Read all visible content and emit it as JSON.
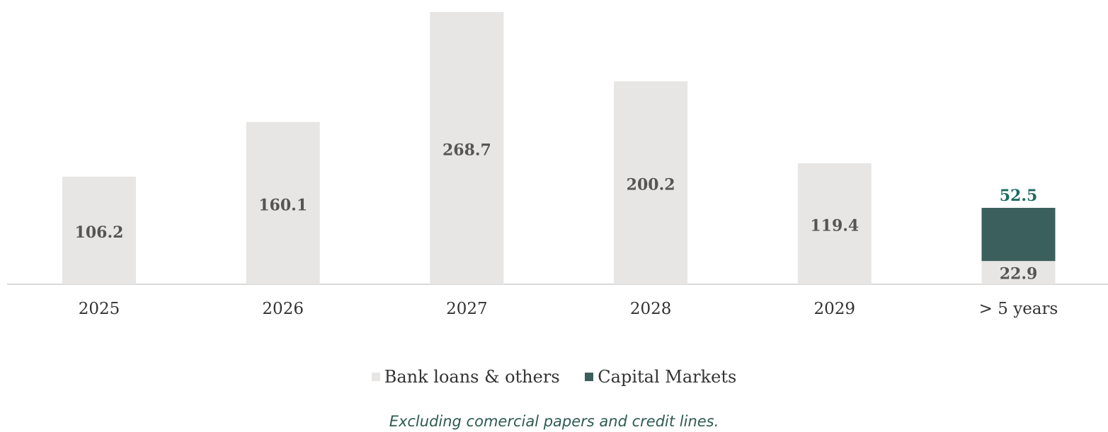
{
  "chart_data": {
    "type": "bar",
    "stacked": true,
    "categories": [
      "2025",
      "2026",
      "2027",
      "2028",
      "2029",
      "> 5 years"
    ],
    "series": [
      {
        "name": "Bank loans & others",
        "color": "#e7e6e5",
        "values": [
          106.2,
          160.1,
          268.7,
          200.2,
          119.4,
          22.9
        ]
      },
      {
        "name": "Capital Markets",
        "color": "#3b5f5c",
        "values": [
          0,
          0,
          0,
          0,
          0,
          52.5
        ]
      }
    ],
    "data_labels": [
      "106.2",
      "160.1",
      "268.7",
      "200.2",
      "119.4",
      "22.9",
      "52.5"
    ],
    "title": "",
    "xlabel": "",
    "ylabel": "",
    "ylim": [
      0,
      268.7
    ],
    "grid": false,
    "legend_position": "bottom"
  },
  "legend": {
    "items": [
      {
        "label": "Bank loans & others",
        "color": "#e7e6e5"
      },
      {
        "label": "Capital Markets",
        "color": "#3b5f5c"
      }
    ]
  },
  "footnote": "Excluding comercial papers and credit lines."
}
